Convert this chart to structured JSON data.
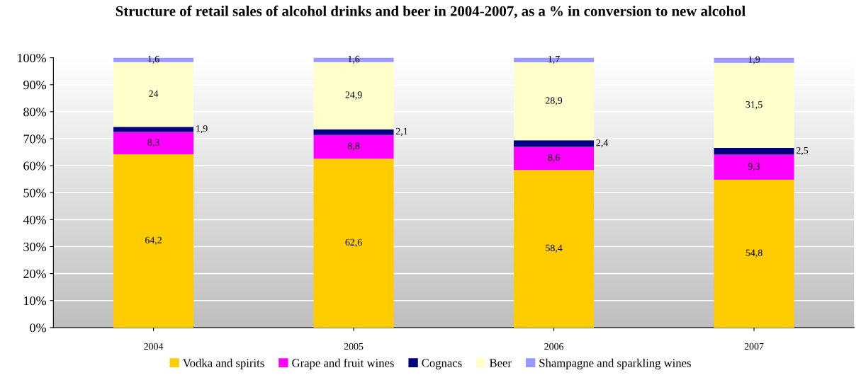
{
  "chart_data": {
    "type": "bar",
    "stacked": true,
    "title": "Structure of retail sales of alcohol drinks and beer in 2004-2007, as a % in conversion to new alcohol",
    "categories": [
      "2004",
      "2005",
      "2006",
      "2007"
    ],
    "series": [
      {
        "name": "Vodka and spirits",
        "color": "#ffcc00",
        "values": [
          64.2,
          62.6,
          58.4,
          54.8
        ],
        "value_labels": [
          "64,2",
          "62,6",
          "58,4",
          "54,8"
        ]
      },
      {
        "name": "Grape and fruit wines",
        "color": "#ff00ff",
        "values": [
          8.3,
          8.8,
          8.6,
          9.3
        ],
        "value_labels": [
          "8,3",
          "8,8",
          "8,6",
          "9,3"
        ]
      },
      {
        "name": "Cognacs",
        "color": "#000080",
        "values": [
          1.9,
          2.1,
          2.4,
          2.5
        ],
        "value_labels": [
          "1,9",
          "2,1",
          "2,4",
          "2,5"
        ]
      },
      {
        "name": "Beer",
        "color": "#ffffcc",
        "values": [
          24,
          24.9,
          28.9,
          31.5
        ],
        "value_labels": [
          "24",
          "24,9",
          "28,9",
          "31,5"
        ]
      },
      {
        "name": "Shampagne and sparkling wines",
        "color": "#9999ff",
        "values": [
          1.6,
          1.6,
          1.7,
          1.9
        ],
        "value_labels": [
          "1,6",
          "1,6",
          "1,7",
          "1,9"
        ]
      }
    ],
    "ylim": [
      0,
      100
    ],
    "yticks": [
      {
        "value": 0,
        "label": "0%"
      },
      {
        "value": 10,
        "label": "10%"
      },
      {
        "value": 20,
        "label": "20%"
      },
      {
        "value": 30,
        "label": "30%"
      },
      {
        "value": 40,
        "label": "40%"
      },
      {
        "value": 50,
        "label": "50%"
      },
      {
        "value": 60,
        "label": "60%"
      },
      {
        "value": 70,
        "label": "70%"
      },
      {
        "value": 80,
        "label": "80%"
      },
      {
        "value": 90,
        "label": "90%"
      },
      {
        "value": 100,
        "label": "100%"
      }
    ],
    "grid": "y",
    "legend": "bottom"
  }
}
